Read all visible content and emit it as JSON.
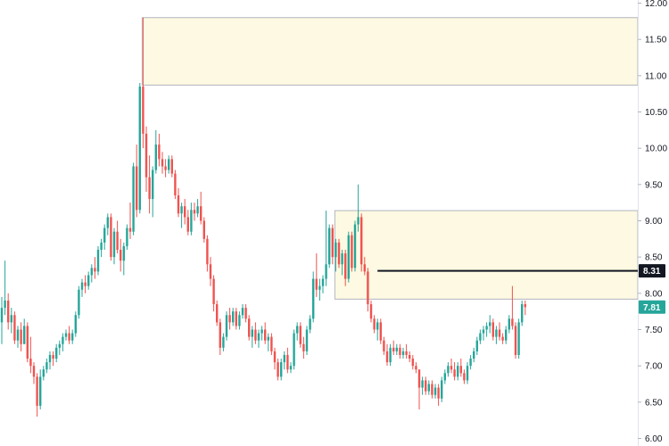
{
  "chart_data": {
    "type": "candlestick",
    "y_axis": {
      "position": "right",
      "ylim": [
        6.0,
        12.0
      ],
      "ticks": [
        "12.00",
        "11.50",
        "11.00",
        "10.50",
        "10.00",
        "9.50",
        "9.00",
        "8.50",
        "8.00",
        "7.50",
        "7.00",
        "6.50",
        "6.00"
      ]
    },
    "zones": [
      {
        "from": 10.87,
        "to": 11.8,
        "start_index": 44,
        "color": "#fdf9e2",
        "border": "#b2b5be"
      },
      {
        "from": 7.92,
        "to": 9.14,
        "start_index": 104,
        "color": "#fdf9e2",
        "border": "#b2b5be"
      }
    ],
    "level_line": {
      "value": 8.31,
      "label": "8.31",
      "start_index": 117,
      "color": "#131722"
    },
    "last_price": {
      "value": 7.81,
      "label": "7.81",
      "color": "#26a69a"
    },
    "colors": {
      "up": "#26a69a",
      "down": "#ef5350"
    },
    "candles": [
      {
        "o": 7.6,
        "h": 7.95,
        "l": 7.3,
        "c": 7.8
      },
      {
        "o": 7.8,
        "h": 8.45,
        "l": 7.7,
        "c": 7.9
      },
      {
        "o": 7.9,
        "h": 8.0,
        "l": 7.5,
        "c": 7.6
      },
      {
        "o": 7.6,
        "h": 7.8,
        "l": 7.45,
        "c": 7.7
      },
      {
        "o": 7.7,
        "h": 7.75,
        "l": 7.3,
        "c": 7.35
      },
      {
        "o": 7.35,
        "h": 7.55,
        "l": 7.25,
        "c": 7.5
      },
      {
        "o": 7.5,
        "h": 7.6,
        "l": 7.2,
        "c": 7.3
      },
      {
        "o": 7.3,
        "h": 7.65,
        "l": 7.3,
        "c": 7.55
      },
      {
        "o": 7.55,
        "h": 7.6,
        "l": 7.05,
        "c": 7.1
      },
      {
        "o": 7.1,
        "h": 7.4,
        "l": 6.9,
        "c": 7.0
      },
      {
        "o": 7.0,
        "h": 7.05,
        "l": 6.75,
        "c": 6.85
      },
      {
        "o": 6.85,
        "h": 6.9,
        "l": 6.3,
        "c": 6.45
      },
      {
        "o": 6.45,
        "h": 6.95,
        "l": 6.4,
        "c": 6.85
      },
      {
        "o": 6.85,
        "h": 7.0,
        "l": 6.8,
        "c": 6.95
      },
      {
        "o": 6.95,
        "h": 7.1,
        "l": 6.9,
        "c": 7.05
      },
      {
        "o": 7.05,
        "h": 7.2,
        "l": 6.95,
        "c": 7.15
      },
      {
        "o": 7.15,
        "h": 7.2,
        "l": 7.0,
        "c": 7.1
      },
      {
        "o": 7.1,
        "h": 7.3,
        "l": 7.05,
        "c": 7.25
      },
      {
        "o": 7.25,
        "h": 7.35,
        "l": 7.15,
        "c": 7.3
      },
      {
        "o": 7.3,
        "h": 7.45,
        "l": 7.2,
        "c": 7.4
      },
      {
        "o": 7.4,
        "h": 7.5,
        "l": 7.35,
        "c": 7.45
      },
      {
        "o": 7.45,
        "h": 7.55,
        "l": 7.3,
        "c": 7.35
      },
      {
        "o": 7.35,
        "h": 7.5,
        "l": 7.3,
        "c": 7.45
      },
      {
        "o": 7.45,
        "h": 7.75,
        "l": 7.4,
        "c": 7.7
      },
      {
        "o": 7.7,
        "h": 8.1,
        "l": 7.65,
        "c": 8.05
      },
      {
        "o": 8.05,
        "h": 8.2,
        "l": 7.95,
        "c": 8.15
      },
      {
        "o": 8.15,
        "h": 8.25,
        "l": 8.0,
        "c": 8.1
      },
      {
        "o": 8.1,
        "h": 8.3,
        "l": 8.05,
        "c": 8.25
      },
      {
        "o": 8.25,
        "h": 8.4,
        "l": 8.15,
        "c": 8.35
      },
      {
        "o": 8.35,
        "h": 8.5,
        "l": 8.2,
        "c": 8.3
      },
      {
        "o": 8.3,
        "h": 8.65,
        "l": 8.25,
        "c": 8.6
      },
      {
        "o": 8.6,
        "h": 8.75,
        "l": 8.5,
        "c": 8.7
      },
      {
        "o": 8.7,
        "h": 8.95,
        "l": 8.6,
        "c": 8.9
      },
      {
        "o": 8.9,
        "h": 9.1,
        "l": 8.8,
        "c": 9.05
      },
      {
        "o": 9.05,
        "h": 9.1,
        "l": 8.45,
        "c": 8.5
      },
      {
        "o": 8.5,
        "h": 8.9,
        "l": 8.4,
        "c": 8.85
      },
      {
        "o": 8.85,
        "h": 9.0,
        "l": 8.55,
        "c": 8.6
      },
      {
        "o": 8.6,
        "h": 8.75,
        "l": 8.3,
        "c": 8.45
      },
      {
        "o": 8.45,
        "h": 8.7,
        "l": 8.25,
        "c": 8.65
      },
      {
        "o": 8.65,
        "h": 8.95,
        "l": 8.6,
        "c": 8.9
      },
      {
        "o": 8.9,
        "h": 9.25,
        "l": 8.75,
        "c": 8.85
      },
      {
        "o": 8.85,
        "h": 9.8,
        "l": 8.8,
        "c": 9.75
      },
      {
        "o": 9.75,
        "h": 10.05,
        "l": 9.05,
        "c": 9.15
      },
      {
        "o": 9.15,
        "h": 10.9,
        "l": 9.1,
        "c": 10.85
      },
      {
        "o": 10.85,
        "h": 11.8,
        "l": 10.0,
        "c": 10.2
      },
      {
        "o": 10.2,
        "h": 10.3,
        "l": 9.4,
        "c": 9.6
      },
      {
        "o": 9.6,
        "h": 9.9,
        "l": 9.1,
        "c": 9.3
      },
      {
        "o": 9.3,
        "h": 9.75,
        "l": 9.05,
        "c": 9.7
      },
      {
        "o": 9.7,
        "h": 10.25,
        "l": 9.65,
        "c": 10.05
      },
      {
        "o": 10.05,
        "h": 10.2,
        "l": 9.75,
        "c": 9.85
      },
      {
        "o": 9.85,
        "h": 9.95,
        "l": 9.65,
        "c": 9.75
      },
      {
        "o": 9.75,
        "h": 9.85,
        "l": 9.6,
        "c": 9.7
      },
      {
        "o": 9.7,
        "h": 9.9,
        "l": 9.65,
        "c": 9.85
      },
      {
        "o": 9.85,
        "h": 9.9,
        "l": 9.6,
        "c": 9.65
      },
      {
        "o": 9.65,
        "h": 9.7,
        "l": 9.3,
        "c": 9.35
      },
      {
        "o": 9.35,
        "h": 9.45,
        "l": 9.05,
        "c": 9.1
      },
      {
        "o": 9.1,
        "h": 9.25,
        "l": 8.9,
        "c": 9.2
      },
      {
        "o": 9.2,
        "h": 9.3,
        "l": 8.95,
        "c": 9.05
      },
      {
        "o": 9.05,
        "h": 9.15,
        "l": 8.8,
        "c": 8.85
      },
      {
        "o": 8.85,
        "h": 9.25,
        "l": 8.8,
        "c": 9.15
      },
      {
        "o": 9.15,
        "h": 9.25,
        "l": 9.0,
        "c": 9.1
      },
      {
        "o": 9.1,
        "h": 9.3,
        "l": 9.05,
        "c": 9.2
      },
      {
        "o": 9.2,
        "h": 9.4,
        "l": 8.95,
        "c": 9.0
      },
      {
        "o": 9.0,
        "h": 9.05,
        "l": 8.7,
        "c": 8.75
      },
      {
        "o": 8.75,
        "h": 8.8,
        "l": 8.3,
        "c": 8.4
      },
      {
        "o": 8.4,
        "h": 8.5,
        "l": 8.1,
        "c": 8.2
      },
      {
        "o": 8.2,
        "h": 8.25,
        "l": 7.75,
        "c": 7.85
      },
      {
        "o": 7.85,
        "h": 7.9,
        "l": 7.55,
        "c": 7.6
      },
      {
        "o": 7.6,
        "h": 7.65,
        "l": 7.15,
        "c": 7.25
      },
      {
        "o": 7.25,
        "h": 7.45,
        "l": 7.2,
        "c": 7.4
      },
      {
        "o": 7.4,
        "h": 7.75,
        "l": 7.35,
        "c": 7.7
      },
      {
        "o": 7.7,
        "h": 7.8,
        "l": 7.5,
        "c": 7.6
      },
      {
        "o": 7.6,
        "h": 7.8,
        "l": 7.55,
        "c": 7.75
      },
      {
        "o": 7.75,
        "h": 7.8,
        "l": 7.5,
        "c": 7.55
      },
      {
        "o": 7.55,
        "h": 7.75,
        "l": 7.5,
        "c": 7.7
      },
      {
        "o": 7.7,
        "h": 7.85,
        "l": 7.65,
        "c": 7.8
      },
      {
        "o": 7.8,
        "h": 7.85,
        "l": 7.6,
        "c": 7.65
      },
      {
        "o": 7.65,
        "h": 7.7,
        "l": 7.35,
        "c": 7.4
      },
      {
        "o": 7.4,
        "h": 7.55,
        "l": 7.25,
        "c": 7.5
      },
      {
        "o": 7.5,
        "h": 7.6,
        "l": 7.3,
        "c": 7.35
      },
      {
        "o": 7.35,
        "h": 7.5,
        "l": 7.25,
        "c": 7.45
      },
      {
        "o": 7.45,
        "h": 7.55,
        "l": 7.35,
        "c": 7.5
      },
      {
        "o": 7.5,
        "h": 7.6,
        "l": 7.3,
        "c": 7.35
      },
      {
        "o": 7.35,
        "h": 7.45,
        "l": 7.2,
        "c": 7.4
      },
      {
        "o": 7.4,
        "h": 7.45,
        "l": 7.15,
        "c": 7.2
      },
      {
        "o": 7.2,
        "h": 7.25,
        "l": 6.95,
        "c": 7.05
      },
      {
        "o": 7.05,
        "h": 7.1,
        "l": 6.8,
        "c": 6.85
      },
      {
        "o": 6.85,
        "h": 7.1,
        "l": 6.8,
        "c": 7.05
      },
      {
        "o": 7.05,
        "h": 7.2,
        "l": 6.95,
        "c": 7.15
      },
      {
        "o": 7.15,
        "h": 7.25,
        "l": 6.9,
        "c": 6.95
      },
      {
        "o": 6.95,
        "h": 7.05,
        "l": 6.9,
        "c": 7.0
      },
      {
        "o": 7.0,
        "h": 7.5,
        "l": 6.95,
        "c": 7.45
      },
      {
        "o": 7.45,
        "h": 7.6,
        "l": 7.35,
        "c": 7.55
      },
      {
        "o": 7.55,
        "h": 7.6,
        "l": 7.25,
        "c": 7.3
      },
      {
        "o": 7.3,
        "h": 7.4,
        "l": 7.1,
        "c": 7.2
      },
      {
        "o": 7.2,
        "h": 7.55,
        "l": 7.15,
        "c": 7.5
      },
      {
        "o": 7.5,
        "h": 7.7,
        "l": 7.45,
        "c": 7.65
      },
      {
        "o": 7.65,
        "h": 8.3,
        "l": 7.6,
        "c": 8.2
      },
      {
        "o": 8.2,
        "h": 8.55,
        "l": 7.95,
        "c": 8.05
      },
      {
        "o": 8.05,
        "h": 8.2,
        "l": 7.9,
        "c": 8.1
      },
      {
        "o": 8.1,
        "h": 8.25,
        "l": 8.0,
        "c": 8.2
      },
      {
        "o": 8.2,
        "h": 9.14,
        "l": 8.1,
        "c": 8.4
      },
      {
        "o": 8.4,
        "h": 8.95,
        "l": 8.35,
        "c": 8.9
      },
      {
        "o": 8.9,
        "h": 8.95,
        "l": 8.4,
        "c": 8.5
      },
      {
        "o": 8.5,
        "h": 8.75,
        "l": 8.3,
        "c": 8.7
      },
      {
        "o": 8.7,
        "h": 8.75,
        "l": 8.35,
        "c": 8.4
      },
      {
        "o": 8.4,
        "h": 8.6,
        "l": 8.25,
        "c": 8.55
      },
      {
        "o": 8.55,
        "h": 8.6,
        "l": 8.1,
        "c": 8.2
      },
      {
        "o": 8.2,
        "h": 8.85,
        "l": 8.15,
        "c": 8.8
      },
      {
        "o": 8.8,
        "h": 8.85,
        "l": 8.3,
        "c": 8.35
      },
      {
        "o": 8.35,
        "h": 9.0,
        "l": 8.3,
        "c": 8.95
      },
      {
        "o": 8.95,
        "h": 9.5,
        "l": 8.85,
        "c": 9.05
      },
      {
        "o": 9.05,
        "h": 9.1,
        "l": 8.3,
        "c": 8.4
      },
      {
        "o": 8.4,
        "h": 8.5,
        "l": 8.25,
        "c": 8.3
      },
      {
        "o": 8.3,
        "h": 8.35,
        "l": 7.75,
        "c": 7.85
      },
      {
        "o": 7.85,
        "h": 7.9,
        "l": 7.6,
        "c": 7.65
      },
      {
        "o": 7.65,
        "h": 7.7,
        "l": 7.45,
        "c": 7.5
      },
      {
        "o": 7.5,
        "h": 7.65,
        "l": 7.35,
        "c": 7.6
      },
      {
        "o": 7.6,
        "h": 7.65,
        "l": 7.3,
        "c": 7.35
      },
      {
        "o": 7.35,
        "h": 7.4,
        "l": 7.15,
        "c": 7.2
      },
      {
        "o": 7.2,
        "h": 7.3,
        "l": 7.0,
        "c": 7.05
      },
      {
        "o": 7.05,
        "h": 7.3,
        "l": 7.0,
        "c": 7.25
      },
      {
        "o": 7.25,
        "h": 7.35,
        "l": 7.15,
        "c": 7.2
      },
      {
        "o": 7.2,
        "h": 7.3,
        "l": 7.15,
        "c": 7.25
      },
      {
        "o": 7.25,
        "h": 7.3,
        "l": 7.1,
        "c": 7.15
      },
      {
        "o": 7.15,
        "h": 7.25,
        "l": 7.1,
        "c": 7.2
      },
      {
        "o": 7.2,
        "h": 7.3,
        "l": 7.1,
        "c": 7.15
      },
      {
        "o": 7.15,
        "h": 7.2,
        "l": 7.05,
        "c": 7.1
      },
      {
        "o": 7.1,
        "h": 7.15,
        "l": 6.95,
        "c": 7.0
      },
      {
        "o": 7.0,
        "h": 7.05,
        "l": 6.9,
        "c": 6.95
      },
      {
        "o": 6.95,
        "h": 6.95,
        "l": 6.4,
        "c": 6.7
      },
      {
        "o": 6.7,
        "h": 6.85,
        "l": 6.6,
        "c": 6.8
      },
      {
        "o": 6.8,
        "h": 6.85,
        "l": 6.6,
        "c": 6.65
      },
      {
        "o": 6.65,
        "h": 6.8,
        "l": 6.6,
        "c": 6.75
      },
      {
        "o": 6.75,
        "h": 6.8,
        "l": 6.55,
        "c": 6.6
      },
      {
        "o": 6.6,
        "h": 6.75,
        "l": 6.55,
        "c": 6.7
      },
      {
        "o": 6.7,
        "h": 6.75,
        "l": 6.45,
        "c": 6.55
      },
      {
        "o": 6.55,
        "h": 6.85,
        "l": 6.5,
        "c": 6.8
      },
      {
        "o": 6.8,
        "h": 6.95,
        "l": 6.75,
        "c": 6.9
      },
      {
        "o": 6.9,
        "h": 7.05,
        "l": 6.85,
        "c": 7.0
      },
      {
        "o": 7.0,
        "h": 7.1,
        "l": 6.9,
        "c": 6.95
      },
      {
        "o": 6.95,
        "h": 7.05,
        "l": 6.8,
        "c": 6.85
      },
      {
        "o": 6.85,
        "h": 7.05,
        "l": 6.8,
        "c": 7.0
      },
      {
        "o": 7.0,
        "h": 7.1,
        "l": 6.85,
        "c": 6.9
      },
      {
        "o": 6.9,
        "h": 6.95,
        "l": 6.75,
        "c": 6.8
      },
      {
        "o": 6.8,
        "h": 7.05,
        "l": 6.75,
        "c": 7.0
      },
      {
        "o": 7.0,
        "h": 7.15,
        "l": 6.95,
        "c": 7.1
      },
      {
        "o": 7.1,
        "h": 7.25,
        "l": 7.05,
        "c": 7.2
      },
      {
        "o": 7.2,
        "h": 7.4,
        "l": 7.15,
        "c": 7.35
      },
      {
        "o": 7.35,
        "h": 7.5,
        "l": 7.3,
        "c": 7.45
      },
      {
        "o": 7.45,
        "h": 7.55,
        "l": 7.35,
        "c": 7.5
      },
      {
        "o": 7.5,
        "h": 7.6,
        "l": 7.4,
        "c": 7.55
      },
      {
        "o": 7.55,
        "h": 7.7,
        "l": 7.45,
        "c": 7.6
      },
      {
        "o": 7.6,
        "h": 7.65,
        "l": 7.35,
        "c": 7.4
      },
      {
        "o": 7.4,
        "h": 7.55,
        "l": 7.3,
        "c": 7.5
      },
      {
        "o": 7.5,
        "h": 7.6,
        "l": 7.35,
        "c": 7.4
      },
      {
        "o": 7.4,
        "h": 7.45,
        "l": 7.3,
        "c": 7.35
      },
      {
        "o": 7.35,
        "h": 7.55,
        "l": 7.3,
        "c": 7.5
      },
      {
        "o": 7.5,
        "h": 7.7,
        "l": 7.45,
        "c": 7.65
      },
      {
        "o": 7.65,
        "h": 8.1,
        "l": 7.5,
        "c": 7.55
      },
      {
        "o": 7.55,
        "h": 7.6,
        "l": 7.1,
        "c": 7.15
      },
      {
        "o": 7.15,
        "h": 7.65,
        "l": 7.1,
        "c": 7.6
      },
      {
        "o": 7.6,
        "h": 7.9,
        "l": 7.55,
        "c": 7.85
      },
      {
        "o": 7.85,
        "h": 7.9,
        "l": 7.7,
        "c": 7.81
      }
    ]
  }
}
